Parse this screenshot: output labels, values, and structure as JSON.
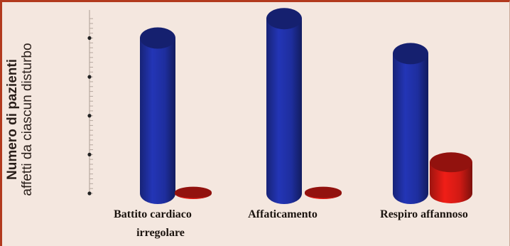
{
  "chart_data": {
    "type": "bar",
    "categories": [
      [
        "Battito cardiaco",
        "irregolare"
      ],
      [
        "Affaticamento"
      ],
      [
        "Respiro affannoso"
      ]
    ],
    "series": [
      {
        "color": "#1e2e9e",
        "values": [
          8.0,
          9.0,
          7.2
        ]
      },
      {
        "color": "#d11a14",
        "values": [
          0.05,
          0.05,
          1.6
        ]
      }
    ],
    "y_ticks": [
      0,
      2,
      4,
      6,
      8
    ],
    "ylim": [
      0,
      9.3
    ],
    "ylabel": {
      "bold": "Numero di pazienti",
      "normal": "affetti da ciascun disturbo"
    },
    "grid": false
  },
  "colors": {
    "panel_bg": "#f4e7df",
    "border": "#b23a1e"
  }
}
